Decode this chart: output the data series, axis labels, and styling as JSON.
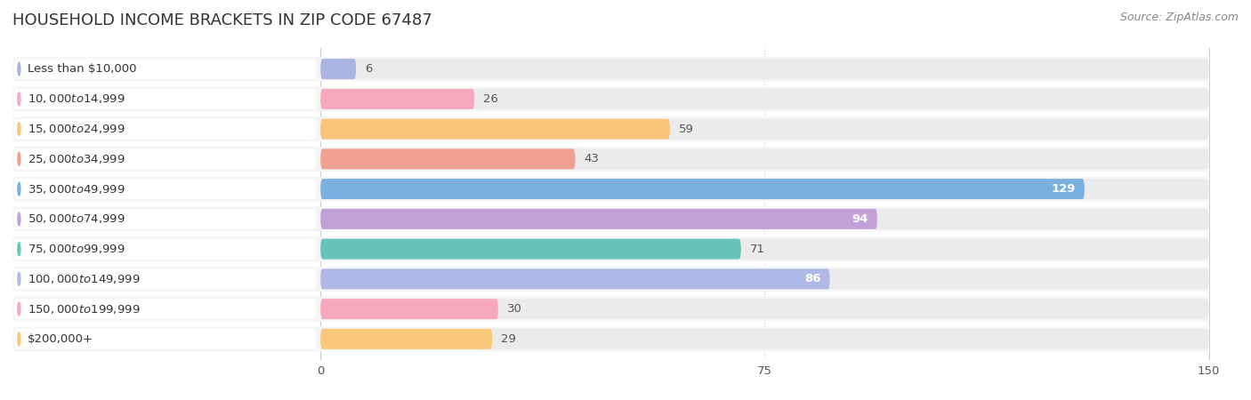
{
  "title": "HOUSEHOLD INCOME BRACKETS IN ZIP CODE 67487",
  "source": "Source: ZipAtlas.com",
  "categories": [
    "Less than $10,000",
    "$10,000 to $14,999",
    "$15,000 to $24,999",
    "$25,000 to $34,999",
    "$35,000 to $49,999",
    "$50,000 to $74,999",
    "$75,000 to $99,999",
    "$100,000 to $149,999",
    "$150,000 to $199,999",
    "$200,000+"
  ],
  "values": [
    6,
    26,
    59,
    43,
    129,
    94,
    71,
    86,
    30,
    29
  ],
  "bar_colors": [
    "#aab4e0",
    "#f7a8bc",
    "#f9c47a",
    "#f0a090",
    "#7ab0e0",
    "#c4a0d8",
    "#68c4b8",
    "#b0b8e8",
    "#f7a8bc",
    "#f9c87a"
  ],
  "data_max": 150,
  "xticks": [
    0,
    75,
    150
  ],
  "bar_bg_color": "#ebebeb",
  "row_bg_color": "#f5f5f5",
  "title_fontsize": 13,
  "label_fontsize": 9.5,
  "value_fontsize": 9.5,
  "source_fontsize": 9
}
